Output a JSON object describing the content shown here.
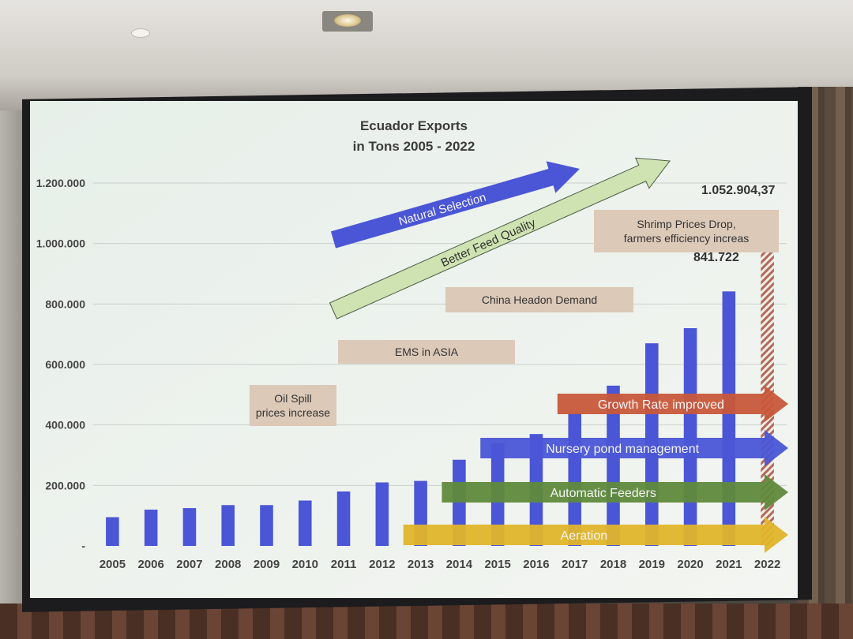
{
  "chart_data": {
    "type": "bar",
    "title_lines": [
      "Ecuador Exports",
      "in Tons 2005 - 2022"
    ],
    "categories": [
      "2005",
      "2006",
      "2007",
      "2008",
      "2009",
      "2010",
      "2011",
      "2012",
      "2013",
      "2014",
      "2015",
      "2016",
      "2017",
      "2018",
      "2019",
      "2020",
      "2021",
      "2022"
    ],
    "values": [
      95000,
      120000,
      125000,
      135000,
      135000,
      150000,
      180000,
      210000,
      215000,
      285000,
      340000,
      370000,
      440000,
      530000,
      670000,
      720000,
      841722,
      1052904.37
    ],
    "ylim": [
      0,
      1200000
    ],
    "y_ticks": [
      0,
      200000,
      400000,
      600000,
      800000,
      1000000,
      1200000
    ],
    "y_tick_labels": [
      "-",
      "200.000",
      "400.000",
      "600.000",
      "800.000",
      "1.000.000",
      "1.200.000"
    ],
    "value_labels": {
      "2021": "841.722",
      "2022": "1.052.904,37"
    },
    "grid": true,
    "colors": {
      "bar": "#4a56d6",
      "last_bar": "#c47a6a"
    },
    "annotations": [
      {
        "text": "Oil Spill\nprices increase",
        "year": "2010"
      },
      {
        "text": "EMS in ASIA",
        "year": "2012"
      },
      {
        "text": "China Headon Demand",
        "year": "2015"
      },
      {
        "text": "Shrimp Prices Drop,\nfarmers efficiency increas",
        "year": "2019"
      }
    ],
    "trend_arrows": [
      {
        "label": "Natural Selection",
        "color": "#4a56d6"
      },
      {
        "label": "Better Feed Quality",
        "color": "#cfe3b2"
      }
    ],
    "practice_arrows": [
      {
        "label": "Growth Rate improved",
        "start": "2017",
        "color": "#c8583a"
      },
      {
        "label": "Nursery pond management",
        "start": "2015",
        "color": "#4a56d6"
      },
      {
        "label": "Automatic Feeders",
        "start": "2014",
        "color": "#5f8a3c"
      },
      {
        "label": "Aeration",
        "start": "2013",
        "color": "#e0b52a"
      }
    ]
  }
}
